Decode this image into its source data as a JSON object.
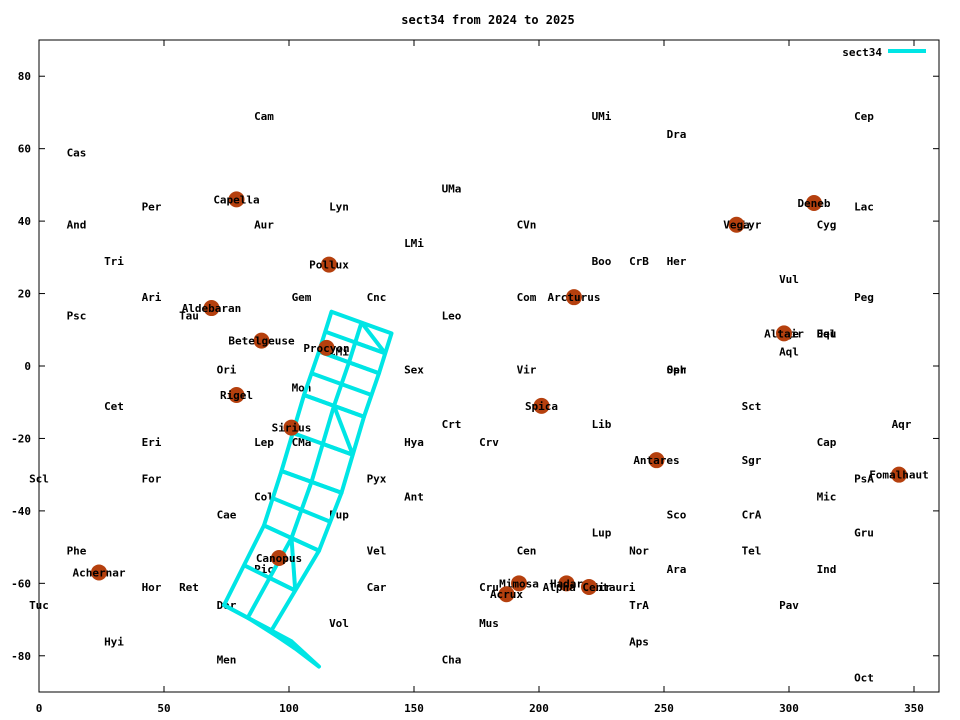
{
  "chart_data": {
    "type": "scatter",
    "title": "sect34 from 2024 to 2025",
    "xlim": [
      0,
      360
    ],
    "ylim": [
      -90,
      90
    ],
    "x_ticks": [
      0,
      50,
      100,
      150,
      200,
      250,
      300,
      350
    ],
    "y_ticks": [
      -80,
      -60,
      -40,
      -20,
      0,
      20,
      40,
      60,
      80
    ],
    "legend": {
      "label": "sect34",
      "placement": "top-right"
    },
    "colors": {
      "sector": "#00e5e5",
      "star": "#b5400e",
      "axis": "#000000"
    },
    "constellations": [
      {
        "name": "Cam",
        "x": 90,
        "y": 69
      },
      {
        "name": "UMi",
        "x": 225,
        "y": 69
      },
      {
        "name": "Cep",
        "x": 330,
        "y": 69
      },
      {
        "name": "Dra",
        "x": 255,
        "y": 64
      },
      {
        "name": "Cas",
        "x": 15,
        "y": 59
      },
      {
        "name": "UMa",
        "x": 165,
        "y": 49
      },
      {
        "name": "Per",
        "x": 45,
        "y": 44
      },
      {
        "name": "Lyn",
        "x": 120,
        "y": 44
      },
      {
        "name": "Lac",
        "x": 330,
        "y": 44
      },
      {
        "name": "And",
        "x": 15,
        "y": 39
      },
      {
        "name": "Aur",
        "x": 90,
        "y": 39
      },
      {
        "name": "CVn",
        "x": 195,
        "y": 39
      },
      {
        "name": "Cyg",
        "x": 315,
        "y": 39
      },
      {
        "name": "Lyr",
        "x": 285,
        "y": 39
      },
      {
        "name": "LMi",
        "x": 150,
        "y": 34
      },
      {
        "name": "Tri",
        "x": 30,
        "y": 29
      },
      {
        "name": "Boo",
        "x": 225,
        "y": 29
      },
      {
        "name": "CrB",
        "x": 240,
        "y": 29
      },
      {
        "name": "Her",
        "x": 255,
        "y": 29
      },
      {
        "name": "Vul",
        "x": 300,
        "y": 24
      },
      {
        "name": "Ari",
        "x": 45,
        "y": 19
      },
      {
        "name": "Gem",
        "x": 105,
        "y": 19
      },
      {
        "name": "Cnc",
        "x": 135,
        "y": 19
      },
      {
        "name": "Com",
        "x": 195,
        "y": 19
      },
      {
        "name": "Peg",
        "x": 330,
        "y": 19
      },
      {
        "name": "Psc",
        "x": 15,
        "y": 14
      },
      {
        "name": "Tau",
        "x": 60,
        "y": 14
      },
      {
        "name": "Leo",
        "x": 165,
        "y": 14
      },
      {
        "name": "Sge",
        "x": 300,
        "y": 9
      },
      {
        "name": "Del",
        "x": 315,
        "y": 9
      },
      {
        "name": "Equ",
        "x": 315,
        "y": 9
      },
      {
        "name": "CMi",
        "x": 120,
        "y": 4
      },
      {
        "name": "Aql",
        "x": 300,
        "y": 4
      },
      {
        "name": "Ori",
        "x": 75,
        "y": -1
      },
      {
        "name": "Sex",
        "x": 150,
        "y": -1
      },
      {
        "name": "Vir",
        "x": 195,
        "y": -1
      },
      {
        "name": "Oph",
        "x": 255,
        "y": -1
      },
      {
        "name": "Ser",
        "x": 255,
        "y": -1
      },
      {
        "name": "Mon",
        "x": 105,
        "y": -6
      },
      {
        "name": "Cet",
        "x": 30,
        "y": -11
      },
      {
        "name": "Sct",
        "x": 285,
        "y": -11
      },
      {
        "name": "Crt",
        "x": 165,
        "y": -16
      },
      {
        "name": "Lib",
        "x": 225,
        "y": -16
      },
      {
        "name": "Aqr",
        "x": 345,
        "y": -16
      },
      {
        "name": "Eri",
        "x": 45,
        "y": -21
      },
      {
        "name": "Lep",
        "x": 90,
        "y": -21
      },
      {
        "name": "CMa",
        "x": 105,
        "y": -21
      },
      {
        "name": "Hya",
        "x": 150,
        "y": -21
      },
      {
        "name": "Crv",
        "x": 180,
        "y": -21
      },
      {
        "name": "Cap",
        "x": 315,
        "y": -21
      },
      {
        "name": "Sgr",
        "x": 285,
        "y": -26
      },
      {
        "name": "Scl",
        "x": 0,
        "y": -31
      },
      {
        "name": "For",
        "x": 45,
        "y": -31
      },
      {
        "name": "Pyx",
        "x": 135,
        "y": -31
      },
      {
        "name": "PsA",
        "x": 330,
        "y": -31
      },
      {
        "name": "Col",
        "x": 90,
        "y": -36
      },
      {
        "name": "Ant",
        "x": 150,
        "y": -36
      },
      {
        "name": "Mic",
        "x": 315,
        "y": -36
      },
      {
        "name": "Cae",
        "x": 75,
        "y": -41
      },
      {
        "name": "Pup",
        "x": 120,
        "y": -41
      },
      {
        "name": "Sco",
        "x": 255,
        "y": -41
      },
      {
        "name": "CrA",
        "x": 285,
        "y": -41
      },
      {
        "name": "Gru",
        "x": 330,
        "y": -46
      },
      {
        "name": "Lup",
        "x": 225,
        "y": -46
      },
      {
        "name": "Phe",
        "x": 15,
        "y": -51
      },
      {
        "name": "Vel",
        "x": 135,
        "y": -51
      },
      {
        "name": "Cen",
        "x": 195,
        "y": -51
      },
      {
        "name": "Nor",
        "x": 240,
        "y": -51
      },
      {
        "name": "Tel",
        "x": 285,
        "y": -51
      },
      {
        "name": "Pic",
        "x": 90,
        "y": -56
      },
      {
        "name": "Ara",
        "x": 255,
        "y": -56
      },
      {
        "name": "Ind",
        "x": 315,
        "y": -56
      },
      {
        "name": "Hor",
        "x": 45,
        "y": -61
      },
      {
        "name": "Ret",
        "x": 60,
        "y": -61
      },
      {
        "name": "Car",
        "x": 135,
        "y": -61
      },
      {
        "name": "Cru",
        "x": 180,
        "y": -61
      },
      {
        "name": "Cir",
        "x": 225,
        "y": -61
      },
      {
        "name": "Tuc",
        "x": 0,
        "y": -66
      },
      {
        "name": "Dor",
        "x": 75,
        "y": -66
      },
      {
        "name": "TrA",
        "x": 240,
        "y": -66
      },
      {
        "name": "Pav",
        "x": 300,
        "y": -66
      },
      {
        "name": "Vol",
        "x": 120,
        "y": -71
      },
      {
        "name": "Mus",
        "x": 180,
        "y": -71
      },
      {
        "name": "Hyi",
        "x": 30,
        "y": -76
      },
      {
        "name": "Aps",
        "x": 240,
        "y": -76
      },
      {
        "name": "Men",
        "x": 75,
        "y": -81
      },
      {
        "name": "Cha",
        "x": 165,
        "y": -81
      },
      {
        "name": "Oct",
        "x": 330,
        "y": -86
      }
    ],
    "stars": [
      {
        "name": "Capella",
        "x": 79,
        "y": 46
      },
      {
        "name": "Deneb",
        "x": 310,
        "y": 45
      },
      {
        "name": "Vega",
        "x": 279,
        "y": 39
      },
      {
        "name": "Pollux",
        "x": 116,
        "y": 28
      },
      {
        "name": "Arcturus",
        "x": 214,
        "y": 19
      },
      {
        "name": "Aldebaran",
        "x": 69,
        "y": 16
      },
      {
        "name": "Altair",
        "x": 298,
        "y": 9
      },
      {
        "name": "Betelgeuse",
        "x": 89,
        "y": 7
      },
      {
        "name": "Procyon",
        "x": 115,
        "y": 5
      },
      {
        "name": "Rigel",
        "x": 79,
        "y": -8
      },
      {
        "name": "Spica",
        "x": 201,
        "y": -11
      },
      {
        "name": "Sirius",
        "x": 101,
        "y": -17
      },
      {
        "name": "Antares",
        "x": 247,
        "y": -26
      },
      {
        "name": "Fomalhaut",
        "x": 344,
        "y": -30
      },
      {
        "name": "Canopus",
        "x": 96,
        "y": -53
      },
      {
        "name": "Achernar",
        "x": 24,
        "y": -57
      },
      {
        "name": "Mimosa",
        "x": 192,
        "y": -60
      },
      {
        "name": "Hadar",
        "x": 211,
        "y": -60
      },
      {
        "name": "Alpha Centauri",
        "x": 220,
        "y": -61
      },
      {
        "name": "Acrux",
        "x": 187,
        "y": -63
      }
    ],
    "sector_cameras": [
      [
        [
          117,
          15
        ],
        [
          141,
          9
        ],
        [
          136,
          -2
        ],
        [
          112,
          4
        ]
      ],
      [
        [
          112,
          4
        ],
        [
          136,
          -2
        ],
        [
          130,
          -14
        ],
        [
          106,
          -8
        ]
      ],
      [
        [
          106,
          -8
        ],
        [
          130,
          -14
        ],
        [
          121,
          -35
        ],
        [
          97,
          -29
        ]
      ],
      [
        [
          97,
          -29
        ],
        [
          121,
          -35
        ],
        [
          112,
          -51
        ],
        [
          90,
          -44
        ]
      ],
      [
        [
          90,
          -44
        ],
        [
          112,
          -51
        ],
        [
          93,
          -73
        ],
        [
          74,
          -66
        ]
      ],
      [
        [
          74,
          -66
        ],
        [
          93,
          -73
        ],
        [
          112,
          -83
        ],
        [
          101,
          -76
        ]
      ]
    ]
  }
}
